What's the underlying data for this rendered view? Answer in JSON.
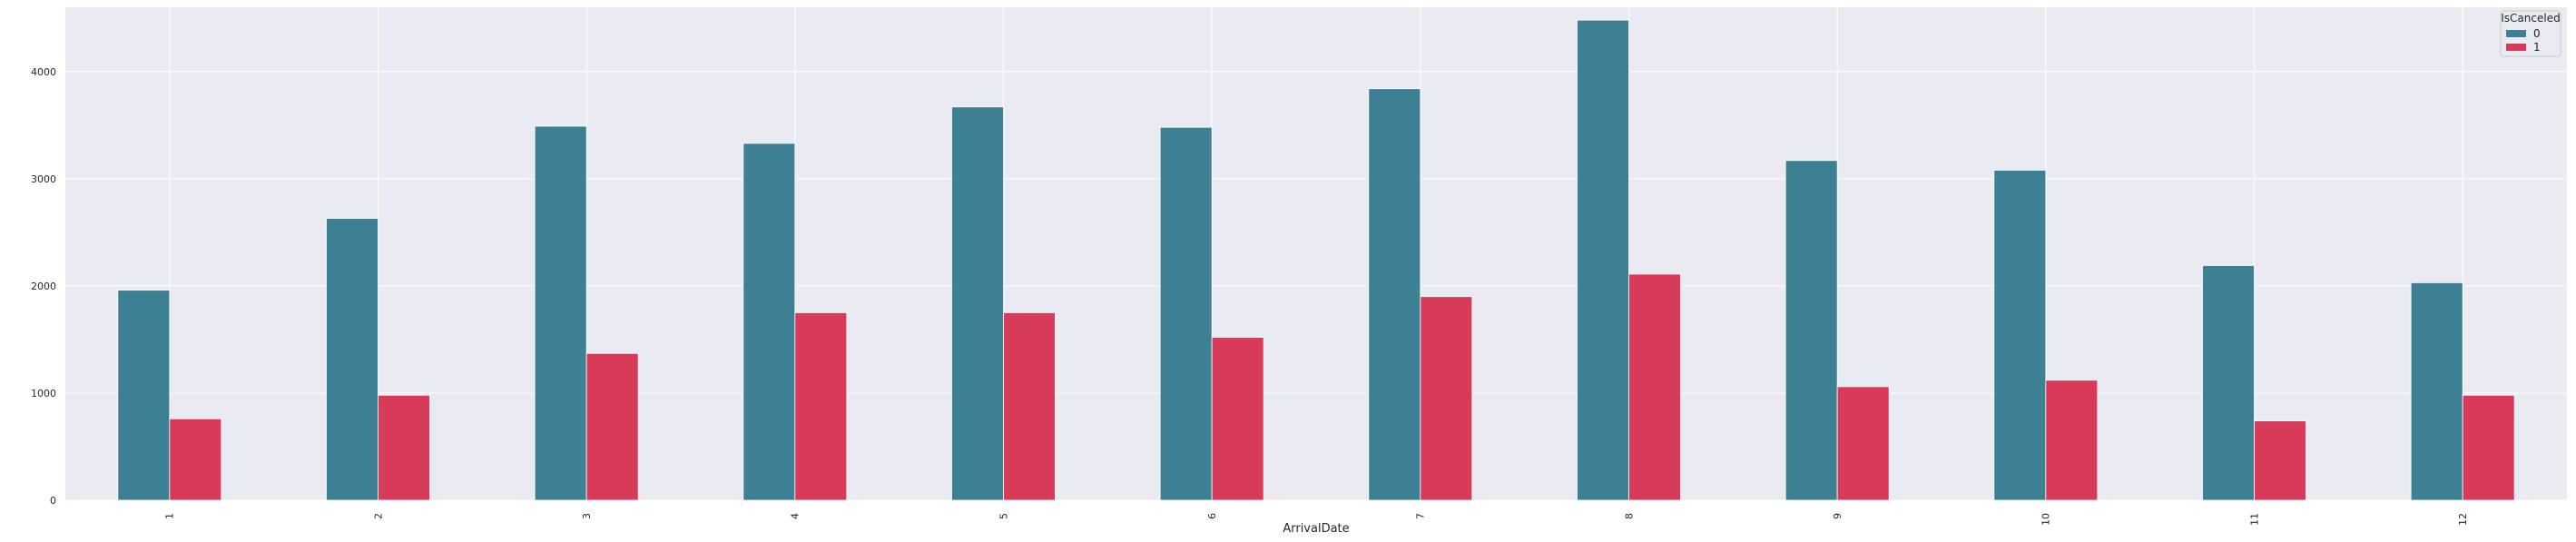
{
  "chart_data": {
    "type": "bar",
    "title": "",
    "xlabel": "ArrivalDate",
    "ylabel": "",
    "categories": [
      "1",
      "2",
      "3",
      "4",
      "5",
      "6",
      "7",
      "8",
      "9",
      "10",
      "11",
      "12"
    ],
    "series": [
      {
        "name": "0",
        "color": "#3d7f93",
        "values": [
          1960,
          2630,
          3490,
          3330,
          3670,
          3480,
          3840,
          4480,
          3170,
          3080,
          2190,
          2030
        ]
      },
      {
        "name": "1",
        "color": "#d83b5a",
        "values": [
          760,
          980,
          1370,
          1750,
          1750,
          1520,
          1900,
          2110,
          1060,
          1120,
          740,
          980
        ]
      }
    ],
    "ylim": [
      0,
      4600
    ],
    "yticks": [
      0,
      1000,
      2000,
      3000,
      4000
    ],
    "grid": true,
    "legend": {
      "title": "IsCanceled",
      "placement": "top-right"
    },
    "style": {
      "background": "#eaeaf2",
      "grid_color": "#ffffff"
    }
  }
}
